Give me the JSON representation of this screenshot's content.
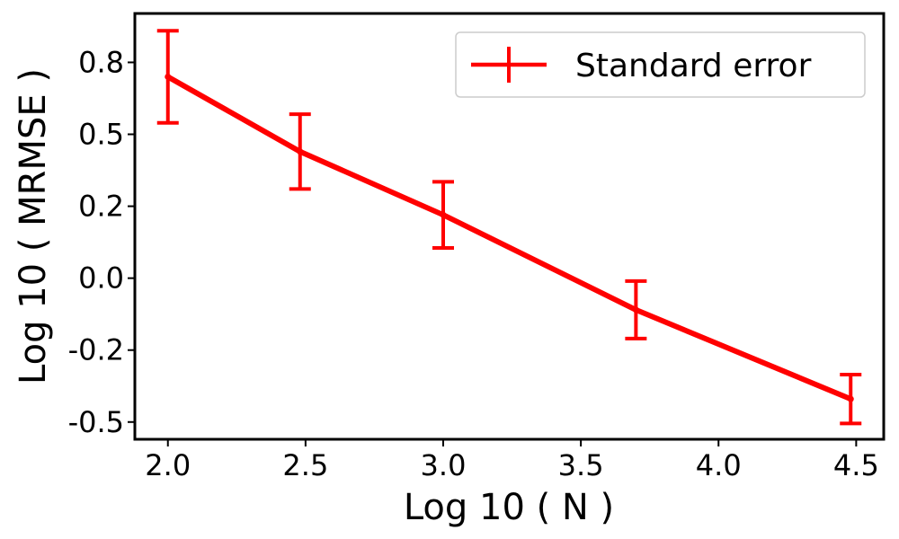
{
  "chart_data": {
    "type": "line",
    "xlabel": "Log 10 ( N )",
    "ylabel": "Log 10 ( MRMSE )",
    "xlim": [
      1.88,
      4.6
    ],
    "ylim": [
      -0.56,
      0.92
    ],
    "xticks": [
      2.0,
      2.5,
      3.0,
      3.5,
      4.0,
      4.5
    ],
    "xtick_labels": [
      "2.0",
      "2.5",
      "3.0",
      "3.5",
      "4.0",
      "4.5"
    ],
    "yticks": [
      0.75,
      0.5,
      0.25,
      0.0,
      -0.25,
      -0.5
    ],
    "ytick_labels": [
      "0.8",
      "0.5",
      "0.2",
      "0.0",
      "-0.2",
      "-0.5"
    ],
    "grid": false,
    "legend_position": "top-right",
    "color": "#ff0000",
    "series": [
      {
        "name": "Standard error",
        "x": [
          2.0,
          2.48,
          3.0,
          3.7,
          4.48
        ],
        "y": [
          0.7,
          0.44,
          0.22,
          -0.11,
          -0.42
        ],
        "yerr": [
          0.16,
          0.13,
          0.115,
          0.1,
          0.085
        ]
      }
    ]
  }
}
